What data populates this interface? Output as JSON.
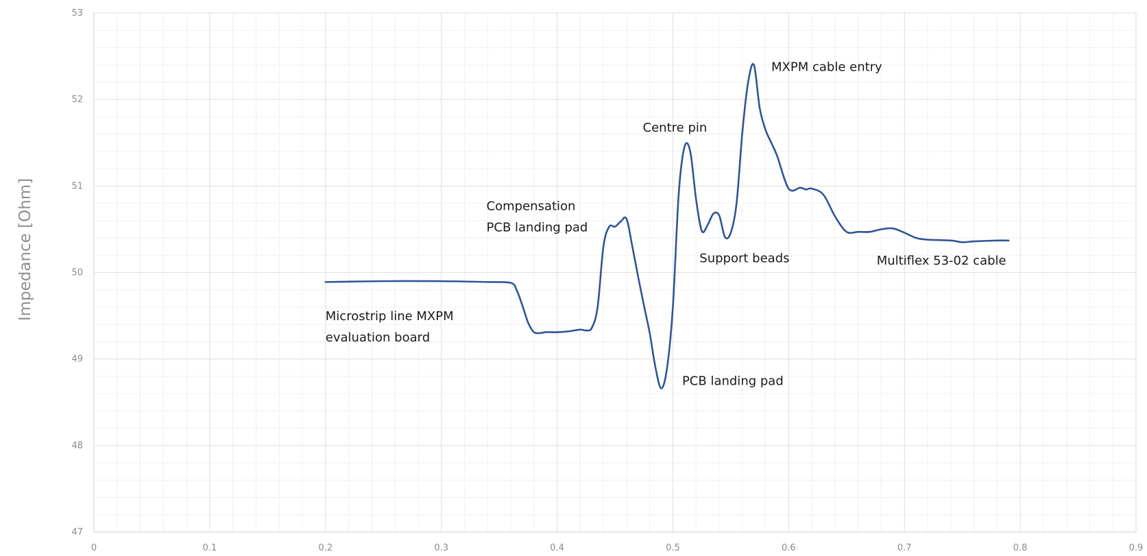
{
  "chart_data": {
    "type": "line",
    "title": "",
    "xlabel": "",
    "ylabel": "Impedance [Ohm]",
    "xlim": [
      0,
      0.9
    ],
    "ylim": [
      47,
      53
    ],
    "xticks": [
      "0",
      "0.1",
      "0.2",
      "0.3",
      "0.4",
      "0.5",
      "0.6",
      "0.7",
      "0.8",
      "0.9"
    ],
    "yticks": [
      "47",
      "48",
      "49",
      "50",
      "51",
      "52",
      "53"
    ],
    "grid": true,
    "legend": "none",
    "colors": {
      "line": "#2f5597",
      "grid_major": "#dedede",
      "grid_minor": "#f0f0f0"
    },
    "series": [
      {
        "x": [
          0.2,
          0.25,
          0.3,
          0.34,
          0.36,
          0.365,
          0.37,
          0.375,
          0.38,
          0.385,
          0.39,
          0.395,
          0.4,
          0.41,
          0.42,
          0.425,
          0.43,
          0.435,
          0.44,
          0.445,
          0.45,
          0.455,
          0.46,
          0.465,
          0.47,
          0.475,
          0.48,
          0.485,
          0.49,
          0.495,
          0.5,
          0.505,
          0.51,
          0.515,
          0.52,
          0.525,
          0.53,
          0.535,
          0.54,
          0.545,
          0.55,
          0.555,
          0.56,
          0.565,
          0.57,
          0.575,
          0.58,
          0.585,
          0.59,
          0.6,
          0.61,
          0.615,
          0.62,
          0.63,
          0.64,
          0.65,
          0.66,
          0.67,
          0.68,
          0.69,
          0.7,
          0.71,
          0.72,
          0.74,
          0.75,
          0.76,
          0.78,
          0.79
        ],
        "y": [
          49.89,
          49.9,
          49.9,
          49.89,
          49.88,
          49.8,
          49.62,
          49.42,
          49.31,
          49.3,
          49.31,
          49.31,
          49.31,
          49.32,
          49.34,
          49.33,
          49.36,
          49.6,
          50.3,
          50.53,
          50.53,
          50.59,
          50.62,
          50.3,
          49.95,
          49.62,
          49.3,
          48.9,
          48.66,
          48.9,
          49.6,
          50.9,
          51.45,
          51.4,
          50.85,
          50.48,
          50.55,
          50.68,
          50.66,
          50.41,
          50.46,
          50.8,
          51.62,
          52.2,
          52.4,
          51.9,
          51.65,
          51.5,
          51.35,
          50.97,
          50.98,
          50.96,
          50.97,
          50.9,
          50.65,
          50.47,
          50.47,
          50.47,
          50.5,
          50.51,
          50.46,
          50.4,
          50.38,
          50.37,
          50.35,
          50.36,
          50.37,
          50.37
        ]
      }
    ],
    "annotations": [
      {
        "lines": [
          "Microstrip line MXPM",
          "evaluation board"
        ],
        "x": 0.2,
        "y": 49.45
      },
      {
        "lines": [
          "Compensation",
          "PCB landing pad"
        ],
        "x": 0.339,
        "y": 50.72
      },
      {
        "lines": [
          "PCB landing pad"
        ],
        "x": 0.508,
        "y": 48.7
      },
      {
        "lines": [
          "Centre pin"
        ],
        "x": 0.474,
        "y": 51.63
      },
      {
        "lines": [
          "Support beads"
        ],
        "x": 0.523,
        "y": 50.12
      },
      {
        "lines": [
          "MXPM cable entry"
        ],
        "x": 0.585,
        "y": 52.33
      },
      {
        "lines": [
          "Multiflex 53-02 cable"
        ],
        "x": 0.676,
        "y": 50.09
      }
    ]
  }
}
